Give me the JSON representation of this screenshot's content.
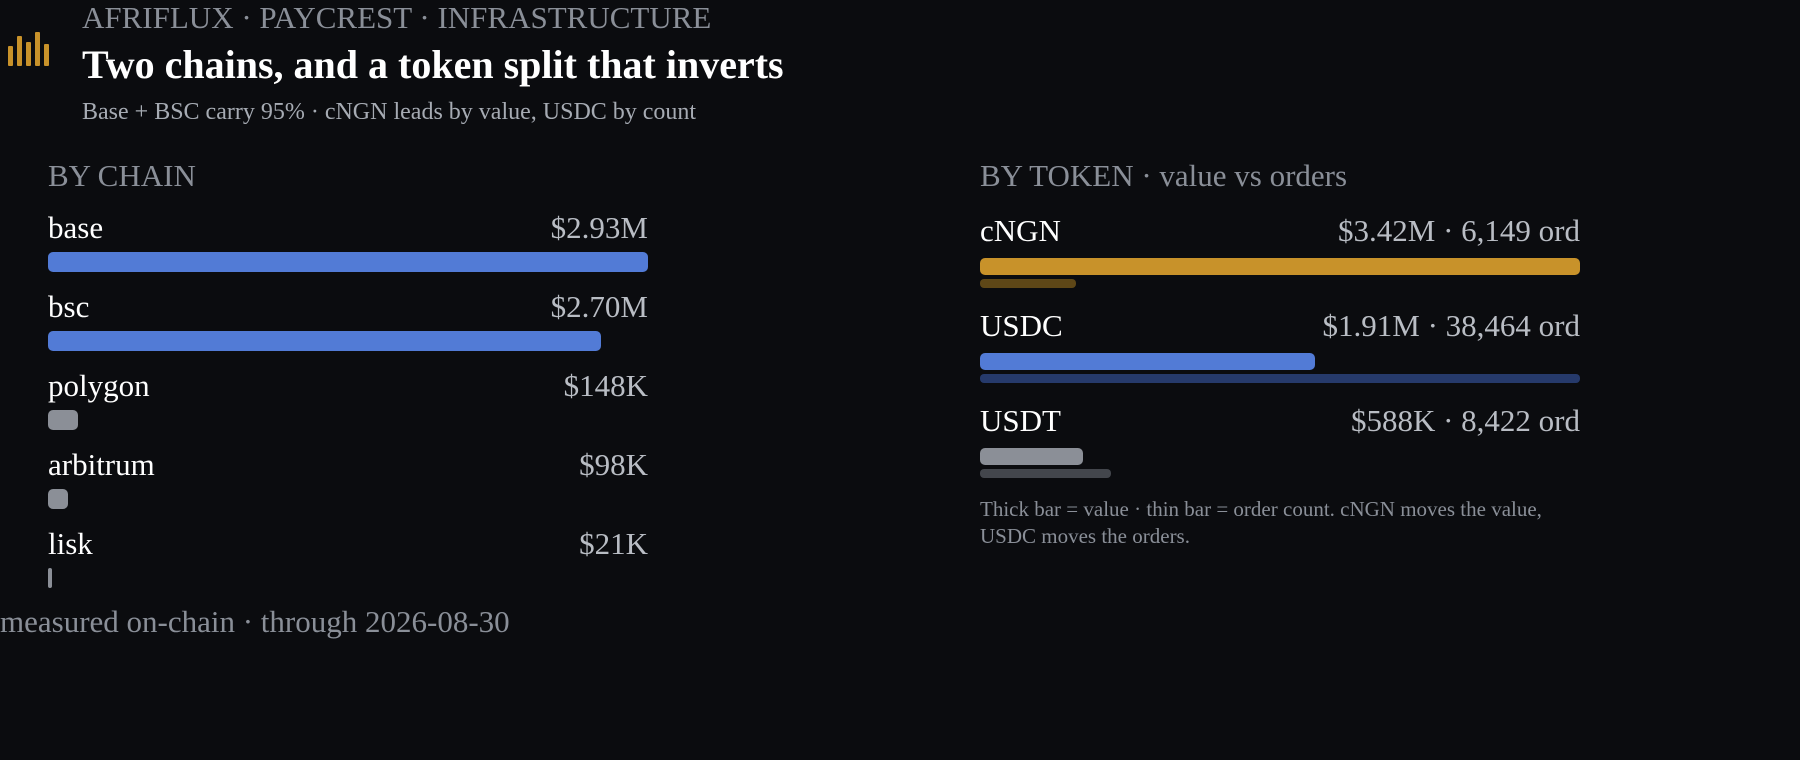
{
  "header": {
    "eyebrow": "AFRIFLUX · PAYCREST · INFRASTRUCTURE",
    "title": "Two chains, and a token split that inverts",
    "subtitle": "Base + BSC carry 95% · cNGN leads by value, USDC by count",
    "logo_icon": "bar-chart-icon"
  },
  "colors": {
    "background": "#0b0c0f",
    "blue": "#527bd6",
    "gold": "#c8922a",
    "gray": "#8b8f97",
    "blue_dim": "#263a6b",
    "gold_dim": "#5e4717",
    "gray_dim": "#43464c"
  },
  "chart_data": [
    {
      "type": "bar",
      "orientation": "horizontal",
      "title": "BY CHAIN",
      "unit": "USD",
      "categories": [
        "base",
        "bsc",
        "polygon",
        "arbitrum",
        "lisk"
      ],
      "values": [
        2930000,
        2700000,
        148000,
        98000,
        21000
      ],
      "value_labels": [
        "$2.93M",
        "$2.70M",
        "$148K",
        "$98K",
        "$21K"
      ],
      "bar_colors": [
        "#527bd6",
        "#527bd6",
        "#8b8f97",
        "#8b8f97",
        "#8b8f97"
      ],
      "xlim": [
        0,
        2930000
      ]
    },
    {
      "type": "bar",
      "orientation": "horizontal",
      "title": "BY TOKEN · value vs orders",
      "categories": [
        "cNGN",
        "USDC",
        "USDT"
      ],
      "series": [
        {
          "metric": "value",
          "unit": "USD",
          "values": [
            3420000,
            1910000,
            588000
          ]
        },
        {
          "metric": "orders",
          "values": [
            6149,
            38464,
            8422
          ]
        }
      ],
      "value_labels": [
        "$3.42M · 6,149 ord",
        "$1.91M · 38,464 ord",
        "$588K · 8,422 ord"
      ],
      "bar_colors": [
        "#c8922a",
        "#527bd6",
        "#8b8f97"
      ],
      "thin_bar_colors": [
        "#5e4717",
        "#263a6b",
        "#43464c"
      ],
      "note": "Thick bar = value · thin bar = order count. cNGN moves the value, USDC moves the orders."
    }
  ],
  "footer": {
    "text": "measured on-chain · through 2026-08-30"
  }
}
